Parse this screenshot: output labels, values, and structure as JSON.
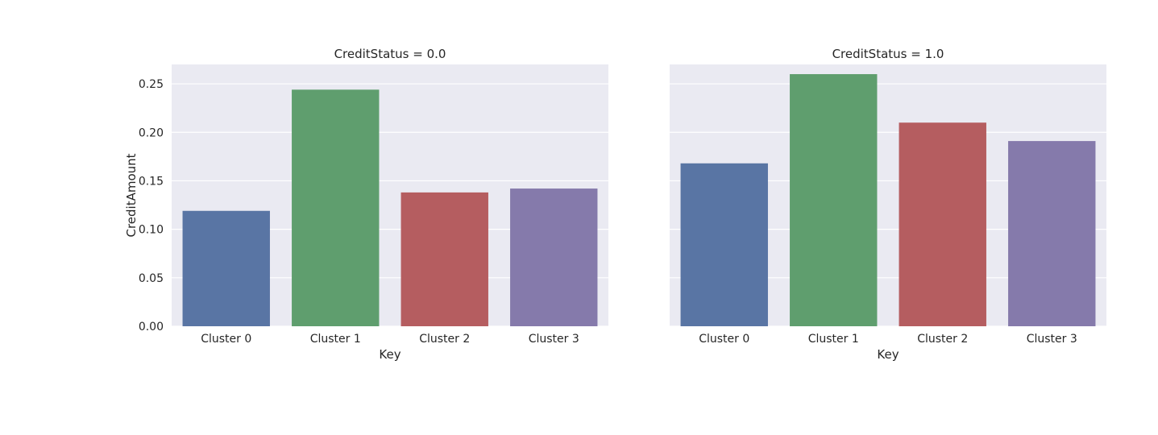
{
  "chart_data": {
    "type": "bar",
    "layout": "facet-columns",
    "ylabel": "CreditAmount",
    "xlabel": "Key",
    "ylim": [
      0,
      0.27
    ],
    "yticks": [
      0.0,
      0.05,
      0.1,
      0.15,
      0.2,
      0.25
    ],
    "ytick_labels": [
      "0.00",
      "0.05",
      "0.10",
      "0.15",
      "0.20",
      "0.25"
    ],
    "grid": true,
    "categories": [
      "Cluster 0",
      "Cluster 1",
      "Cluster 2",
      "Cluster 3"
    ],
    "colors": [
      "#5975a4",
      "#5f9e6e",
      "#b55d60",
      "#857aab"
    ],
    "panels": [
      {
        "title": "CreditStatus = 0.0",
        "values": [
          0.119,
          0.244,
          0.138,
          0.142
        ]
      },
      {
        "title": "CreditStatus = 1.0",
        "values": [
          0.168,
          0.26,
          0.21,
          0.191
        ]
      }
    ]
  }
}
